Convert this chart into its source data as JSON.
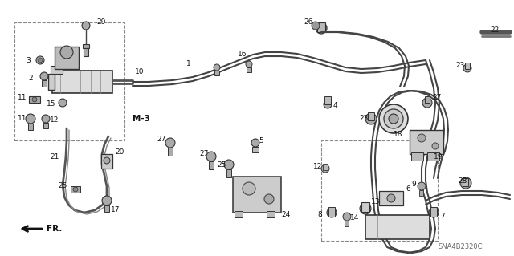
{
  "bg_color": "#ffffff",
  "diagram_id": "SNA4B2320C",
  "fig_width": 6.4,
  "fig_height": 3.19,
  "dpi": 100,
  "line_color": "#444444",
  "part_color": "#555555",
  "box_color": "#666666"
}
